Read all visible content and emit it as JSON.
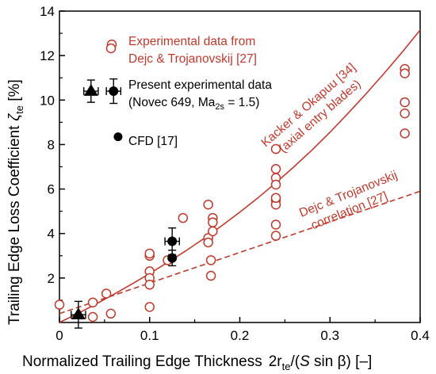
{
  "chart_data": {
    "type": "scatter",
    "xlabel": "Normalized Trailing Edge Thickness",
    "xlabel_math": {
      "c": "2r",
      "sub": "te",
      "rest1": "/(",
      "S": "S",
      "rest2": " sin β)  [–]"
    },
    "ylabel": "Trailing Edge Loss Coefficient",
    "ylabel_math": {
      "sym": "ζ",
      "sub": "te",
      "unit": " [%]"
    },
    "xlim": [
      0,
      0.4
    ],
    "ylim": [
      0,
      14
    ],
    "xticks": [
      "0",
      "0.1",
      "0.2",
      "0.3",
      "0.4"
    ],
    "yticks": [
      "2",
      "4",
      "6",
      "8",
      "10",
      "12",
      "14"
    ],
    "colors": {
      "experimental": "#c0392b",
      "present": "#000000",
      "axis": "#000000"
    },
    "legend": {
      "experimental_line1": "Experimental data from",
      "experimental_line2": "Dejc & Trojanovskij [27]",
      "present_line1": "Present experimental data",
      "present_line2_pre": "(Novec 649, Ma",
      "present_line2_sub": "2s",
      "present_line2_post": " = 1.5)",
      "cfd": "CFD [17]"
    },
    "annotations": {
      "kacker_line1": "Kacker & Okapuu [34]",
      "kacker_line2": "(axial entry blades)",
      "dejc_line1": "Dejc & Trojanovskij",
      "dejc_line2": "correlation [27]"
    },
    "series": [
      {
        "name": "Experimental data from Dejc & Trojanovskij [27]",
        "marker": "open-circle",
        "points": [
          [
            0.0,
            0.8
          ],
          [
            0.037,
            0.9
          ],
          [
            0.037,
            0.25
          ],
          [
            0.057,
            0.4
          ],
          [
            0.052,
            1.3
          ],
          [
            0.058,
            12.5
          ],
          [
            0.1,
            3.0
          ],
          [
            0.1,
            3.1
          ],
          [
            0.1,
            2.3
          ],
          [
            0.1,
            2.0
          ],
          [
            0.1,
            1.7
          ],
          [
            0.1,
            0.7
          ],
          [
            0.12,
            2.8
          ],
          [
            0.137,
            4.7
          ],
          [
            0.165,
            5.3
          ],
          [
            0.165,
            3.8
          ],
          [
            0.165,
            3.6
          ],
          [
            0.17,
            4.7
          ],
          [
            0.17,
            4.5
          ],
          [
            0.17,
            4.1
          ],
          [
            0.168,
            2.8
          ],
          [
            0.168,
            2.1
          ],
          [
            0.24,
            7.8
          ],
          [
            0.24,
            6.9
          ],
          [
            0.24,
            6.5
          ],
          [
            0.24,
            6.2
          ],
          [
            0.24,
            5.5
          ],
          [
            0.24,
            5.3
          ],
          [
            0.24,
            5.6
          ],
          [
            0.24,
            4.4
          ],
          [
            0.24,
            3.9
          ],
          [
            0.383,
            11.4
          ],
          [
            0.383,
            11.2
          ],
          [
            0.383,
            9.9
          ],
          [
            0.383,
            9.4
          ],
          [
            0.383,
            8.5
          ]
        ]
      },
      {
        "name": "Present experimental data (Novec 649, Ma2s = 1.5)",
        "marker": "filled-triangle",
        "points": [
          [
            0.021,
            0.35
          ],
          [
            0.035,
            10.4
          ]
        ],
        "xerr": [
          0.008,
          0.008
        ],
        "yerr": [
          0.6,
          0.5
        ]
      },
      {
        "name": "Present experimental data",
        "marker": "filled-circle",
        "points": [
          [
            0.06,
            10.4
          ],
          [
            0.125,
            3.65
          ],
          [
            0.125,
            2.9
          ]
        ],
        "xerr": [
          0.008,
          0.008,
          0
        ],
        "yerr": [
          0.55,
          0.6,
          0.35
        ]
      },
      {
        "name": "CFD [17]",
        "marker": "filled-circle-small",
        "points": [
          [
            0.065,
            8.35
          ]
        ]
      }
    ],
    "curves": [
      {
        "name": "Kacker & Okapuu [34] (axial entry blades)",
        "style": "solid",
        "x": [
          0,
          0.02,
          0.04,
          0.06,
          0.08,
          0.1,
          0.12,
          0.14,
          0.16,
          0.18,
          0.2,
          0.22,
          0.24,
          0.26,
          0.28,
          0.3,
          0.32,
          0.34,
          0.36,
          0.38,
          0.4
        ],
        "y": [
          0,
          0.4,
          0.82,
          1.26,
          1.72,
          2.2,
          2.7,
          3.22,
          3.77,
          4.35,
          4.96,
          5.6,
          6.28,
          7.0,
          7.75,
          8.55,
          9.4,
          10.28,
          11.2,
          12.15,
          13.15
        ]
      },
      {
        "name": "Dejc & Trojanovskij correlation [27]",
        "style": "dashed",
        "x": [
          0.0,
          0.4
        ],
        "y": [
          0.4,
          5.9
        ]
      }
    ]
  }
}
